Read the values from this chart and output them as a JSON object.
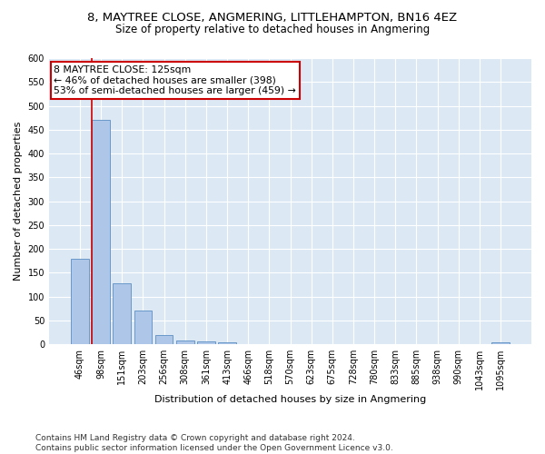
{
  "title": "8, MAYTREE CLOSE, ANGMERING, LITTLEHAMPTON, BN16 4EZ",
  "subtitle": "Size of property relative to detached houses in Angmering",
  "xlabel": "Distribution of detached houses by size in Angmering",
  "ylabel": "Number of detached properties",
  "categories": [
    "46sqm",
    "98sqm",
    "151sqm",
    "203sqm",
    "256sqm",
    "308sqm",
    "361sqm",
    "413sqm",
    "466sqm",
    "518sqm",
    "570sqm",
    "623sqm",
    "675sqm",
    "728sqm",
    "780sqm",
    "833sqm",
    "885sqm",
    "938sqm",
    "990sqm",
    "1043sqm",
    "1095sqm"
  ],
  "values": [
    180,
    470,
    127,
    70,
    20,
    8,
    6,
    5,
    0,
    0,
    0,
    0,
    0,
    0,
    0,
    0,
    0,
    0,
    0,
    0,
    5
  ],
  "bar_color": "#aec6e8",
  "bar_edgecolor": "#5a8fc3",
  "vline_color": "#cc0000",
  "vline_x_index": 1,
  "annotation_text_line1": "8 MAYTREE CLOSE: 125sqm",
  "annotation_text_line2": "← 46% of detached houses are smaller (398)",
  "annotation_text_line3": "53% of semi-detached houses are larger (459) →",
  "annotation_box_color": "#ffffff",
  "annotation_box_edgecolor": "#cc0000",
  "ylim": [
    0,
    600
  ],
  "yticks": [
    0,
    50,
    100,
    150,
    200,
    250,
    300,
    350,
    400,
    450,
    500,
    550,
    600
  ],
  "background_color": "#dce9f5",
  "footnote": "Contains HM Land Registry data © Crown copyright and database right 2024.\nContains public sector information licensed under the Open Government Licence v3.0.",
  "title_fontsize": 9.5,
  "subtitle_fontsize": 8.5,
  "xlabel_fontsize": 8,
  "ylabel_fontsize": 8,
  "tick_fontsize": 7,
  "footnote_fontsize": 6.5,
  "annotation_fontsize": 7.8
}
